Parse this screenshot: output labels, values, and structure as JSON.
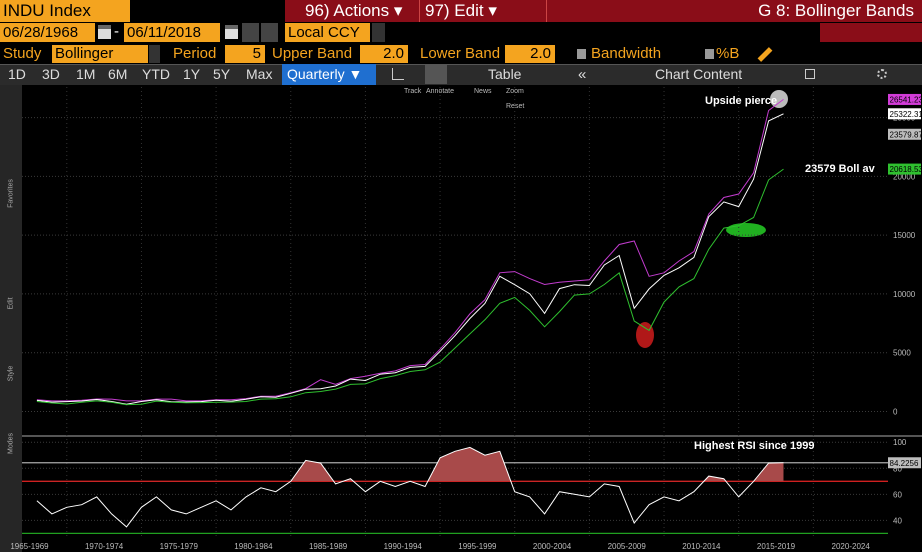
{
  "header": {
    "ticker": "INDU Index",
    "actions": "96) Actions",
    "edit": "97) Edit",
    "title": "G 8: Bollinger Bands"
  },
  "range": {
    "start": "06/28/1968",
    "sep": "-",
    "end": "06/11/2018",
    "currency": "Local CCY"
  },
  "study": {
    "label": "Study",
    "name": "Bollinger",
    "period_label": "Period",
    "period": 5,
    "upper_label": "Upper Band",
    "upper": "2.0",
    "lower_label": "Lower Band",
    "lower": "2.0",
    "bandwidth": "Bandwidth",
    "pctb": "%B"
  },
  "periods": [
    "1D",
    "3D",
    "1M",
    "6M",
    "YTD",
    "1Y",
    "5Y",
    "Max"
  ],
  "frequency": "Quarterly",
  "table": "Table",
  "chart_content": "Chart Content",
  "tools": [
    "Track",
    "Annotate",
    "News",
    "Zoom",
    "Reset"
  ],
  "sidebar": [
    "Favorites",
    "Edit",
    "Style",
    "Modes"
  ],
  "chart_data": [
    {
      "type": "line",
      "x": [
        1968,
        1969,
        1970,
        1971,
        1972,
        1973,
        1974,
        1975,
        1976,
        1977,
        1978,
        1979,
        1980,
        1981,
        1982,
        1983,
        1984,
        1985,
        1986,
        1987,
        1988,
        1989,
        1990,
        1991,
        1992,
        1993,
        1994,
        1995,
        1996,
        1997,
        1998,
        1999,
        2000,
        2001,
        2002,
        2003,
        2004,
        2005,
        2006,
        2007,
        2008,
        2009,
        2010,
        2011,
        2012,
        2013,
        2014,
        2015,
        2016,
        2017,
        2018
      ],
      "series": [
        {
          "color": "#c33ccf",
          "values": [
            1000,
            900,
            900,
            950,
            1060,
            1050,
            900,
            900,
            1050,
            1050,
            900,
            900,
            1000,
            1000,
            1100,
            1300,
            1300,
            1600,
            1950,
            2700,
            2300,
            2800,
            3000,
            3250,
            3450,
            3900,
            4000,
            5300,
            6700,
            8300,
            9500,
            11800,
            11900,
            11300,
            10800,
            11000,
            11100,
            11200,
            12800,
            14200,
            14500,
            11500,
            11800,
            12800,
            13600,
            16800,
            18200,
            18500,
            20300,
            25600,
            26541.23
          ]
        },
        {
          "color": "#ffffff",
          "values": [
            944,
            800,
            839,
            890,
            1020,
            851,
            616,
            852,
            1005,
            831,
            805,
            839,
            964,
            875,
            1047,
            1259,
            1212,
            1547,
            1896,
            1939,
            2169,
            2753,
            2634,
            3169,
            3301,
            3754,
            3834,
            5117,
            6448,
            7908,
            9181,
            11497,
            10787,
            10022,
            8342,
            10454,
            10783,
            10718,
            12463,
            13265,
            8776,
            10428,
            11578,
            12218,
            13104,
            16577,
            17823,
            17425,
            19763,
            24719,
            25322.31
          ]
        },
        {
          "color": "#2fc02f",
          "values": [
            850,
            720,
            640,
            780,
            900,
            780,
            580,
            620,
            880,
            780,
            740,
            760,
            780,
            800,
            850,
            1050,
            1080,
            1250,
            1600,
            1700,
            1900,
            2300,
            2350,
            2800,
            3050,
            3400,
            3550,
            4200,
            5400,
            6600,
            7800,
            9200,
            9700,
            8600,
            7200,
            8500,
            9900,
            10000,
            10800,
            11800,
            7700,
            6900,
            9300,
            10600,
            11300,
            13800,
            15600,
            15800,
            16500,
            19700,
            20618.53
          ]
        }
      ],
      "xlim": [
        1967,
        2025
      ],
      "ylim": [
        -2000,
        27600
      ],
      "yticks": [
        0,
        5000,
        10000,
        15000,
        20000,
        25000
      ],
      "grid": true,
      "end_values": [
        26541.23,
        25322.31,
        23579.87,
        20618.53
      ],
      "end_colors": [
        "#d23cd8",
        "#ffffff",
        "#bdbdbd",
        "#2fc02f"
      ],
      "annotations": [
        "Upside pierce",
        "23579 Boll av"
      ]
    },
    {
      "type": "line",
      "x": [
        1968,
        1969,
        1970,
        1971,
        1972,
        1973,
        1974,
        1975,
        1976,
        1977,
        1978,
        1979,
        1980,
        1981,
        1982,
        1983,
        1984,
        1985,
        1986,
        1987,
        1988,
        1989,
        1990,
        1991,
        1992,
        1993,
        1994,
        1995,
        1996,
        1997,
        1998,
        1999,
        2000,
        2001,
        2002,
        2003,
        2004,
        2005,
        2006,
        2007,
        2008,
        2009,
        2010,
        2011,
        2012,
        2013,
        2014,
        2015,
        2016,
        2017,
        2018
      ],
      "series": [
        {
          "color": "#ffffff",
          "fill": "#a84a4a",
          "values": [
            55,
            45,
            50,
            52,
            58,
            45,
            35,
            50,
            58,
            48,
            45,
            50,
            55,
            48,
            58,
            65,
            62,
            70,
            86,
            84,
            68,
            72,
            62,
            70,
            66,
            70,
            66,
            88,
            93,
            96,
            90,
            93,
            62,
            58,
            45,
            62,
            60,
            58,
            68,
            66,
            38,
            52,
            58,
            55,
            62,
            74,
            72,
            58,
            70,
            84,
            84.2256
          ]
        }
      ],
      "xlim": [
        1967,
        2025
      ],
      "ylim": [
        28,
        104
      ],
      "yticks": [
        40,
        60,
        80,
        100
      ],
      "xticks": [
        {
          "value": 1965,
          "label": "1965-1969"
        },
        {
          "value": 1970,
          "label": "1970-1974"
        },
        {
          "value": 1975,
          "label": "1975-1979"
        },
        {
          "value": 1980,
          "label": "1980-1984"
        },
        {
          "value": 1985,
          "label": "1985-1989"
        },
        {
          "value": 1990,
          "label": "1990-1994"
        },
        {
          "value": 1995,
          "label": "1995-1999"
        },
        {
          "value": 2000,
          "label": "2000-2004"
        },
        {
          "value": 2005,
          "label": "2005-2009"
        },
        {
          "value": 2010,
          "label": "2010-2014"
        },
        {
          "value": 2015,
          "label": "2015-2019"
        },
        {
          "value": 2020,
          "label": "2020-2024"
        }
      ],
      "levels": [
        {
          "value": 70,
          "color": "#d02020"
        },
        {
          "value": 30,
          "color": "#20a020"
        },
        {
          "value": 84.2256,
          "color": "#aaaaaa"
        }
      ],
      "end_values": [
        84.2256
      ],
      "end_colors": [
        "#bdbdbd"
      ],
      "annotations": [
        "Highest RSI since 1999"
      ]
    }
  ]
}
